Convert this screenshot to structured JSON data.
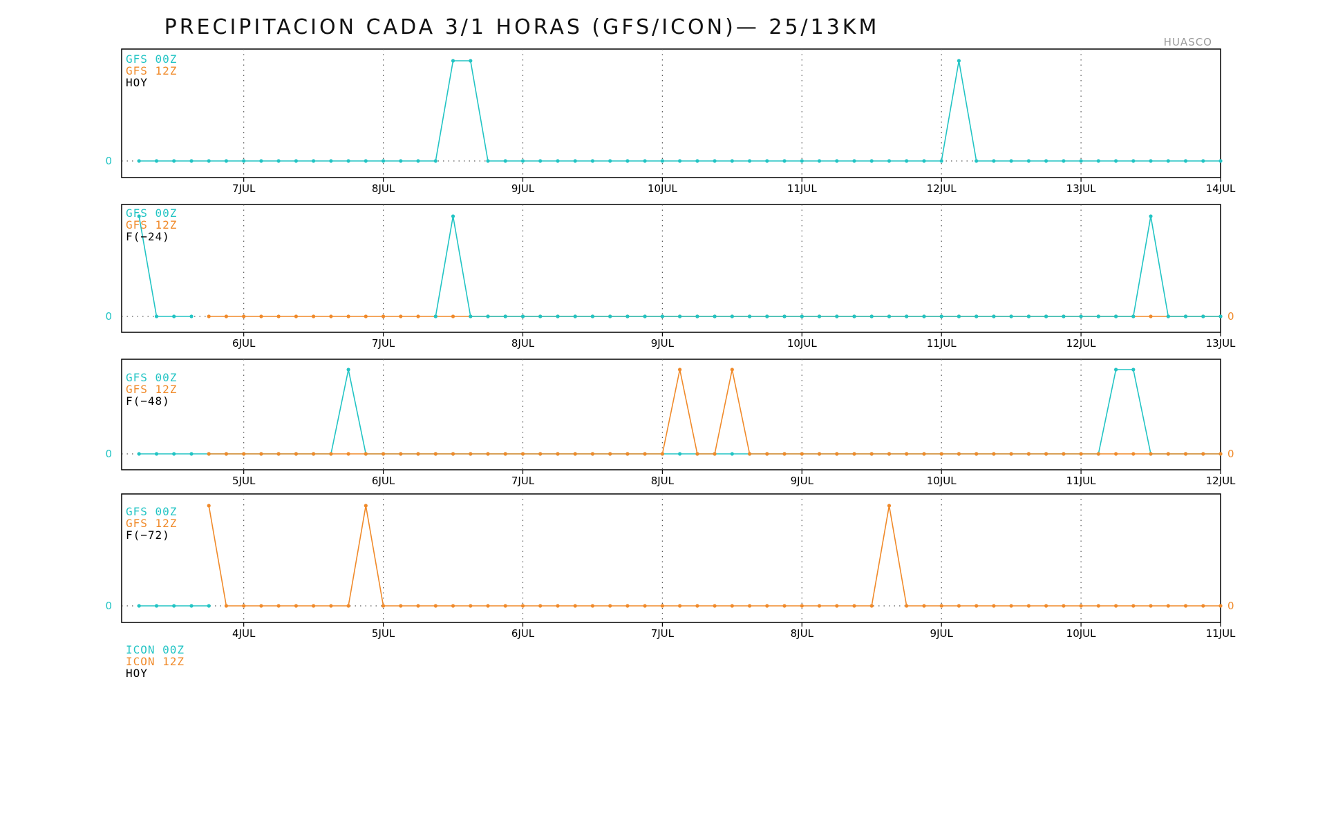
{
  "title": "PRECIPITACION CADA 3/1 HORAS (GFS/ICON)— 25/13KM",
  "station": "HUASCO",
  "colors": {
    "gfs_00z": "#22c4c4",
    "gfs_12z": "#f08a2a",
    "frame": "#000000",
    "grid": "#555555"
  },
  "bottom_legend": {
    "line1": "ICON 00Z",
    "line2": "ICON 12Z",
    "line3": "HOY"
  },
  "panels": [
    {
      "legend": {
        "line1": "GFS 00Z",
        "line2": "GFS 12Z",
        "line3": "HOY"
      },
      "x_ticks": [
        "7JUL",
        "8JUL",
        "9JUL",
        "10JUL",
        "11JUL",
        "12JUL",
        "13JUL",
        "14JUL"
      ],
      "zero_left": "0",
      "zero_right": ""
    },
    {
      "legend": {
        "line1": "GFS 00Z",
        "line2": "GFS 12Z",
        "line3": "F(−24)"
      },
      "x_ticks": [
        "6JUL",
        "7JUL",
        "8JUL",
        "9JUL",
        "10JUL",
        "11JUL",
        "12JUL",
        "13JUL"
      ],
      "zero_left": "0",
      "zero_right": "0"
    },
    {
      "legend": {
        "line1": "GFS 00Z",
        "line2": "GFS 12Z",
        "line3": "F(−48)"
      },
      "x_ticks": [
        "5JUL",
        "6JUL",
        "7JUL",
        "8JUL",
        "9JUL",
        "10JUL",
        "11JUL",
        "12JUL"
      ],
      "zero_left": "0",
      "zero_right": "0"
    },
    {
      "legend": {
        "line1": "GFS 00Z",
        "line2": "GFS 12Z",
        "line3": "F(−72)"
      },
      "x_ticks": [
        "4JUL",
        "5JUL",
        "6JUL",
        "7JUL",
        "8JUL",
        "9JUL",
        "10JUL",
        "11JUL"
      ],
      "zero_left": "0",
      "zero_right": "0"
    }
  ],
  "chart_data": [
    {
      "type": "line",
      "title": "HOY",
      "x_unit": "days (JUL)",
      "x_range": [
        6.125,
        14.0
      ],
      "x_step": 0.125,
      "ylim": [
        0,
        1
      ],
      "series": [
        {
          "name": "GFS 00Z",
          "x_start": 6.25,
          "x_end": 14.0,
          "spikes": [
            [
              8.5,
              1
            ],
            [
              8.625,
              1
            ],
            [
              12.125,
              1
            ]
          ]
        },
        {
          "name": "GFS 12Z",
          "x_start": null,
          "x_end": null,
          "spikes": []
        }
      ]
    },
    {
      "type": "line",
      "title": "F(−24)",
      "x_unit": "days (JUL)",
      "x_range": [
        5.125,
        13.0
      ],
      "x_step": 0.125,
      "ylim": [
        0,
        1
      ],
      "series": [
        {
          "name": "GFS 00Z",
          "x_start": 5.25,
          "x_end": 5.625,
          "spikes": [
            [
              5.25,
              1
            ]
          ]
        },
        {
          "name": "GFS 12Z",
          "x_start": 5.75,
          "x_end": 13.0,
          "spikes": []
        },
        {
          "name": "GFS 00Z (late)",
          "x_start": 7.375,
          "x_end": 13.0,
          "spikes": [
            [
              7.5,
              1
            ],
            [
              12.5,
              1
            ]
          ]
        }
      ]
    },
    {
      "type": "line",
      "title": "F(−48)",
      "x_unit": "days (JUL)",
      "x_range": [
        4.125,
        12.0
      ],
      "x_step": 0.125,
      "ylim": [
        0,
        1
      ],
      "series": [
        {
          "name": "GFS 00Z",
          "x_start": 4.25,
          "x_end": 12.0,
          "spikes": [
            [
              5.75,
              1
            ],
            [
              11.25,
              1
            ],
            [
              11.375,
              1
            ]
          ]
        },
        {
          "name": "GFS 12Z",
          "x_start": 4.75,
          "x_end": 12.0,
          "spikes": [
            [
              8.125,
              1
            ],
            [
              8.5,
              1
            ]
          ]
        }
      ]
    },
    {
      "type": "line",
      "title": "F(−72)",
      "x_unit": "days (JUL)",
      "x_range": [
        3.125,
        11.0
      ],
      "x_step": 0.125,
      "ylim": [
        0,
        1
      ],
      "series": [
        {
          "name": "GFS 00Z",
          "x_start": 3.25,
          "x_end": 3.75,
          "spikes": []
        },
        {
          "name": "GFS 12Z",
          "x_start": 3.75,
          "x_end": 11.0,
          "spikes": [
            [
              3.75,
              1
            ],
            [
              4.875,
              1
            ],
            [
              8.625,
              1
            ]
          ]
        }
      ]
    }
  ]
}
